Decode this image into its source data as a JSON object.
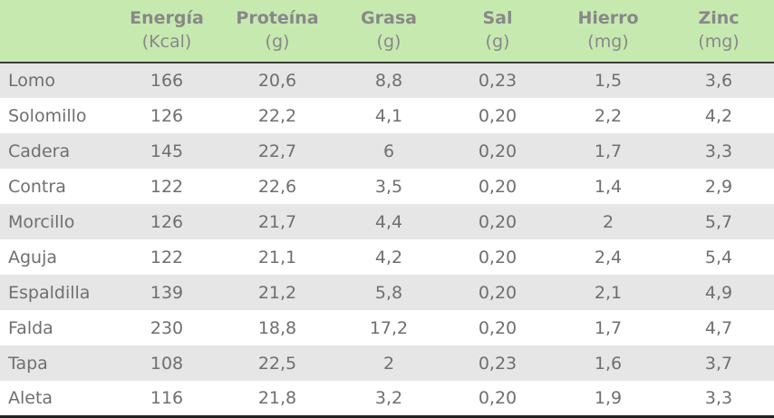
{
  "chart_data": {
    "type": "table",
    "columns": [
      {
        "label": "",
        "unit": ""
      },
      {
        "label": "Energía",
        "unit": "(Kcal)"
      },
      {
        "label": "Proteína",
        "unit": "(g)"
      },
      {
        "label": "Grasa",
        "unit": "(g)"
      },
      {
        "label": "Sal",
        "unit": "(g)"
      },
      {
        "label": "Hierro",
        "unit": "(mg)"
      },
      {
        "label": "Zinc",
        "unit": "(mg)"
      }
    ],
    "rows": [
      [
        "Lomo",
        "166",
        "20,6",
        "8,8",
        "0,23",
        "1,5",
        "3,6"
      ],
      [
        "Solomillo",
        "126",
        "22,2",
        "4,1",
        "0,20",
        "2,2",
        "4,2"
      ],
      [
        "Cadera",
        "145",
        "22,7",
        "6",
        "0,20",
        "1,7",
        "3,3"
      ],
      [
        "Contra",
        "122",
        "22,6",
        "3,5",
        "0,20",
        "1,4",
        "2,9"
      ],
      [
        "Morcillo",
        "126",
        "21,7",
        "4,4",
        "0,20",
        "2",
        "5,7"
      ],
      [
        "Aguja",
        "122",
        "21,1",
        "4,2",
        "0,20",
        "2,4",
        "5,4"
      ],
      [
        "Espaldilla",
        "139",
        "21,2",
        "5,8",
        "0,20",
        "2,1",
        "4,9"
      ],
      [
        "Falda",
        "230",
        "18,8",
        "17,2",
        "0,20",
        "1,7",
        "4,7"
      ],
      [
        "Tapa",
        "108",
        "22,5",
        "2",
        "0,23",
        "1,6",
        "3,7"
      ],
      [
        "Aleta",
        "116",
        "21,8",
        "3,2",
        "0,20",
        "1,9",
        "3,3"
      ]
    ]
  },
  "colors": {
    "header_bg": "#c6e9b0",
    "row_alt_bg": "#e6e6e6",
    "text": "#6f6f6f",
    "header_text": "#888888"
  }
}
